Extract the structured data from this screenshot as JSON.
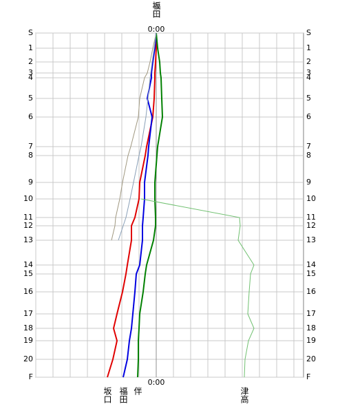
{
  "chart_data": {
    "type": "line",
    "categories": [
      "S",
      "1",
      "2",
      "3",
      "4",
      "5",
      "6",
      "7",
      "8",
      "9",
      "10",
      "11",
      "12",
      "13",
      "14",
      "15",
      "16",
      "17",
      "18",
      "19",
      "20",
      "F"
    ],
    "y": [
      0,
      4.4,
      8.4,
      11.6,
      13,
      19,
      24.4,
      33,
      35.6,
      43.4,
      48.2,
      53.6,
      56,
      60.2,
      67.4,
      70,
      75.2,
      81.6,
      85.8,
      89.4,
      94.8,
      100
    ],
    "ylim": [
      0,
      100
    ],
    "xlim": [
      -7,
      8.56
    ],
    "xticks": [
      {
        "value": 0,
        "label": "0:00"
      }
    ],
    "xgrid": [
      -7,
      -6,
      -5,
      -4,
      -3,
      -2,
      -1,
      0,
      1,
      2,
      3,
      4,
      5,
      6,
      7,
      8
    ],
    "grid": true,
    "series": [
      {
        "name": "坂口",
        "color": "#e00000",
        "width": 2,
        "values": [
          0,
          0,
          -0.04,
          -0.08,
          -0.08,
          -0.12,
          -0.2,
          -0.56,
          -0.64,
          -0.96,
          -1,
          -1.24,
          -1.44,
          -1.44,
          -1.68,
          -1.76,
          -1.96,
          -2.28,
          -2.48,
          -2.28,
          -2.52,
          -2.84
        ]
      },
      {
        "name": "福田",
        "color": "#0000e0",
        "width": 2,
        "values": [
          0,
          -0.08,
          -0.2,
          -0.28,
          -0.28,
          -0.52,
          -0.24,
          -0.44,
          -0.48,
          -0.68,
          -0.68,
          -0.76,
          -0.8,
          -0.8,
          -0.96,
          -1.16,
          -1.24,
          -1.36,
          -1.44,
          -1.56,
          -1.68,
          -1.92
        ]
      },
      {
        "name": "伴",
        "color": "#008000",
        "width": 2,
        "values": [
          0,
          0.08,
          0.2,
          0.24,
          0.28,
          0.32,
          0.36,
          0.08,
          0.04,
          -0.08,
          -0.08,
          -0.04,
          -0.04,
          -0.16,
          -0.56,
          -0.64,
          -0.76,
          -0.96,
          -1,
          -1.04,
          -1.04,
          -1.08
        ]
      },
      {
        "name": null,
        "color": "#a09880",
        "width": 1,
        "values": [
          0,
          -0.2,
          -0.36,
          -0.52,
          -0.68,
          -0.96,
          -1.04,
          -1.48,
          -1.64,
          -1.96,
          -2.12,
          -2.36,
          -2.4,
          -2.6,
          null,
          null,
          null,
          null,
          null,
          null,
          null,
          null
        ]
      },
      {
        "name": null,
        "color": "#8aa0b8",
        "width": 1,
        "values": [
          0,
          -0.12,
          -0.24,
          -0.32,
          -0.36,
          -0.48,
          -0.6,
          -0.88,
          -1,
          -1.32,
          -1.52,
          -1.76,
          -1.92,
          -2.2,
          null,
          null,
          null,
          null,
          null,
          null,
          null,
          null
        ]
      },
      {
        "name": "津高",
        "color": "#70c070",
        "width": 1,
        "values": [
          null,
          null,
          null,
          null,
          null,
          null,
          null,
          null,
          null,
          null,
          -0.88,
          4.84,
          4.88,
          4.76,
          5.68,
          5.48,
          5.4,
          5.32,
          5.68,
          5.36,
          5.16,
          5.12
        ]
      }
    ],
    "leaders": [
      0,
      1
    ]
  }
}
